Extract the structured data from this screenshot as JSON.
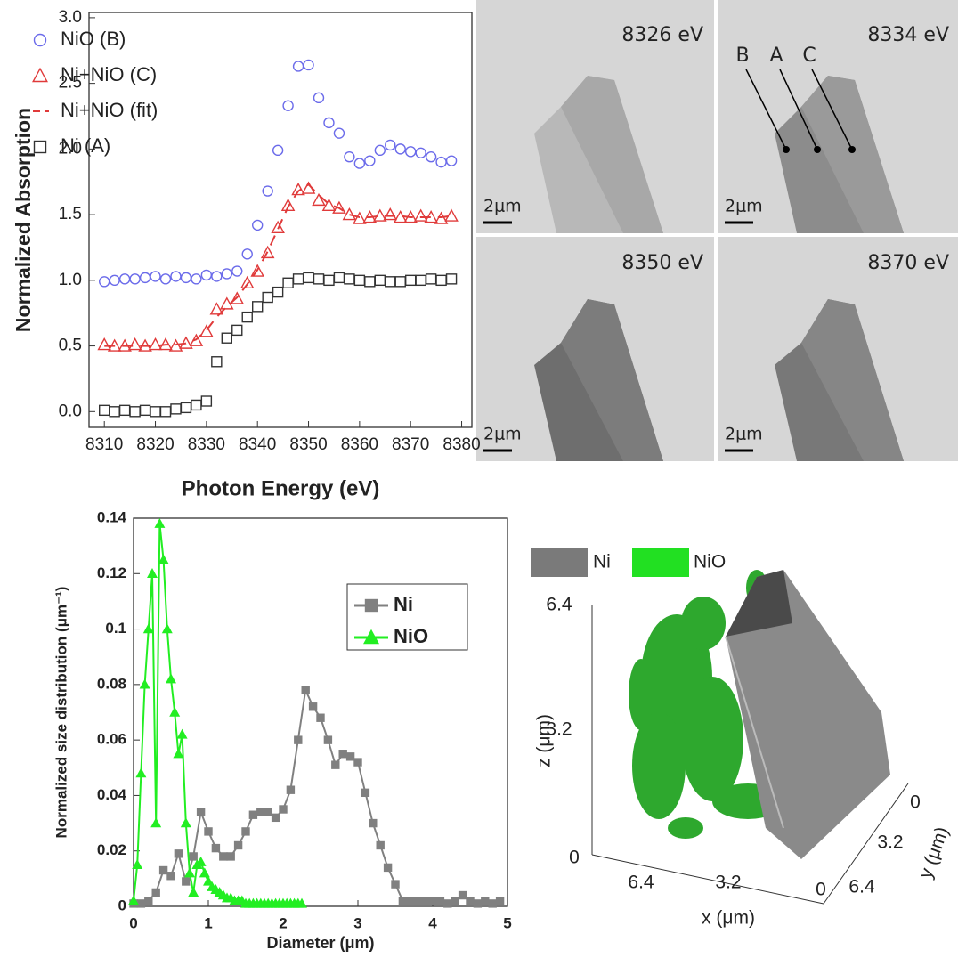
{
  "chart_data": [
    {
      "type": "scatter",
      "x_label": "Photon Energy (eV)",
      "y_label": "Normalized Absorption",
      "x": [
        8310,
        8312,
        8314,
        8316,
        8318,
        8320,
        8322,
        8324,
        8326,
        8328,
        8330,
        8332,
        8334,
        8336,
        8338,
        8340,
        8342,
        8344,
        8346,
        8348,
        8350,
        8352,
        8354,
        8356,
        8358,
        8360,
        8362,
        8364,
        8366,
        8368,
        8370,
        8372,
        8374,
        8376,
        8378
      ],
      "series": [
        {
          "name": "NiO (B)",
          "color": "#6b6bea",
          "marker": "circle",
          "values": [
            0.99,
            1.0,
            1.01,
            1.01,
            1.02,
            1.03,
            1.01,
            1.03,
            1.02,
            1.01,
            1.04,
            1.03,
            1.05,
            1.07,
            1.2,
            1.42,
            1.68,
            1.99,
            2.33,
            2.63,
            2.64,
            2.39,
            2.2,
            2.12,
            1.94,
            1.89,
            1.91,
            1.99,
            2.03,
            2.0,
            1.98,
            1.97,
            1.94,
            1.9,
            1.91
          ]
        },
        {
          "name": "Ni+NiO (C)",
          "color": "#e03a3a",
          "marker": "triangle",
          "values": [
            0.51,
            0.5,
            0.5,
            0.51,
            0.5,
            0.51,
            0.51,
            0.5,
            0.52,
            0.54,
            0.61,
            0.78,
            0.82,
            0.86,
            0.98,
            1.07,
            1.21,
            1.4,
            1.57,
            1.69,
            1.7,
            1.61,
            1.57,
            1.55,
            1.5,
            1.47,
            1.48,
            1.49,
            1.5,
            1.48,
            1.48,
            1.49,
            1.48,
            1.47,
            1.49
          ]
        },
        {
          "name": "Ni+NiO (fit)",
          "color": "#e03a3a",
          "marker": "dash",
          "values": [
            0.5,
            0.5,
            0.5,
            0.5,
            0.5,
            0.5,
            0.51,
            0.51,
            0.52,
            0.55,
            0.62,
            0.72,
            0.8,
            0.87,
            0.97,
            1.08,
            1.22,
            1.39,
            1.56,
            1.68,
            1.73,
            1.65,
            1.58,
            1.55,
            1.5,
            1.48,
            1.48,
            1.49,
            1.49,
            1.49,
            1.48,
            1.48,
            1.48,
            1.48,
            1.49
          ]
        },
        {
          "name": "Ni (A)",
          "color": "#333333",
          "marker": "square",
          "values": [
            0.01,
            0.0,
            0.01,
            0.0,
            0.01,
            0.0,
            0.0,
            0.02,
            0.03,
            0.05,
            0.08,
            0.38,
            0.56,
            0.62,
            0.72,
            0.8,
            0.87,
            0.91,
            0.98,
            1.01,
            1.02,
            1.01,
            1.0,
            1.02,
            1.01,
            1.0,
            0.99,
            1.0,
            0.99,
            0.99,
            1.0,
            1.0,
            1.01,
            1.0,
            1.01
          ]
        }
      ],
      "xlim": [
        8307,
        8382
      ],
      "ylim": [
        -0.12,
        3.04
      ],
      "xticks": [
        8310,
        8320,
        8330,
        8340,
        8350,
        8360,
        8370,
        8380
      ],
      "yticks": [
        {
          "value": 0,
          "label": "0.0"
        },
        0.5,
        {
          "value": 1,
          "label": "1.0"
        },
        1.5,
        {
          "value": 2,
          "label": "2.0"
        },
        2.5,
        {
          "value": 3,
          "label": "3.0"
        }
      ],
      "legend": "upper left"
    },
    {
      "type": "line",
      "x_label": "Diameter (μm)",
      "y_label": "Normalized size distribution (μm⁻¹)",
      "series": [
        {
          "name": "Ni",
          "color": "#808080",
          "marker": "square",
          "x": [
            0,
            0.1,
            0.2,
            0.3,
            0.4,
            0.5,
            0.6,
            0.7,
            0.8,
            0.9,
            1.0,
            1.1,
            1.2,
            1.3,
            1.4,
            1.5,
            1.6,
            1.7,
            1.8,
            1.9,
            2.0,
            2.1,
            2.2,
            2.3,
            2.4,
            2.5,
            2.6,
            2.7,
            2.8,
            2.9,
            3.0,
            3.1,
            3.2,
            3.3,
            3.4,
            3.5,
            3.6,
            3.7,
            3.8,
            3.9,
            4.0,
            4.1,
            4.2,
            4.3,
            4.4,
            4.5,
            4.6,
            4.7,
            4.8,
            4.9
          ],
          "values": [
            0.001,
            0.001,
            0.002,
            0.005,
            0.013,
            0.011,
            0.019,
            0.009,
            0.018,
            0.034,
            0.027,
            0.021,
            0.018,
            0.018,
            0.022,
            0.027,
            0.033,
            0.034,
            0.034,
            0.032,
            0.035,
            0.042,
            0.06,
            0.078,
            0.072,
            0.068,
            0.06,
            0.051,
            0.055,
            0.054,
            0.052,
            0.041,
            0.03,
            0.022,
            0.014,
            0.008,
            0.002,
            0.002,
            0.002,
            0.002,
            0.002,
            0.002,
            0.001,
            0.002,
            0.004,
            0.002,
            0.001,
            0.002,
            0.001,
            0.002
          ]
        },
        {
          "name": "NiO",
          "color": "#22ee22",
          "marker": "triangle",
          "x": [
            0,
            0.05,
            0.1,
            0.15,
            0.2,
            0.25,
            0.3,
            0.35,
            0.4,
            0.45,
            0.5,
            0.55,
            0.6,
            0.65,
            0.7,
            0.75,
            0.8,
            0.85,
            0.9,
            0.95,
            1.0,
            1.05,
            1.1,
            1.15,
            1.2,
            1.25,
            1.3,
            1.35,
            1.4,
            1.45,
            1.5,
            1.55,
            1.6,
            1.65,
            1.7,
            1.75,
            1.8,
            1.85,
            1.9,
            1.95,
            2.0,
            2.05,
            2.1,
            2.15,
            2.2,
            2.25
          ],
          "values": [
            0.002,
            0.015,
            0.048,
            0.08,
            0.1,
            0.12,
            0.03,
            0.138,
            0.125,
            0.1,
            0.082,
            0.07,
            0.055,
            0.062,
            0.03,
            0.012,
            0.005,
            0.015,
            0.016,
            0.012,
            0.009,
            0.007,
            0.006,
            0.005,
            0.004,
            0.003,
            0.003,
            0.002,
            0.002,
            0.002,
            0.001,
            0.001,
            0.001,
            0.001,
            0.001,
            0.001,
            0.001,
            0.001,
            0.001,
            0.001,
            0.001,
            0.001,
            0.001,
            0.001,
            0.001,
            0.001
          ]
        }
      ],
      "xlim": [
        0,
        5
      ],
      "ylim": [
        0,
        0.14
      ],
      "xticks": [
        0,
        1,
        2,
        3,
        4,
        5
      ],
      "yticks": [
        0,
        0.02,
        0.04,
        0.06,
        0.08,
        0.1,
        0.12,
        0.14
      ],
      "legend": "center right"
    }
  ],
  "images": [
    {
      "label": "8326 eV",
      "scale_bar": "2μm"
    },
    {
      "label": "8334 eV",
      "scale_bar": "2μm"
    },
    {
      "label": "8350 eV",
      "scale_bar": "2μm"
    },
    {
      "label": "8370 eV",
      "scale_bar": "2μm"
    }
  ],
  "point_labels": [
    "B",
    "A",
    "C"
  ],
  "render3d": {
    "legend": [
      "Ni",
      "NiO"
    ],
    "z_label": "z (μm)",
    "x_label": "x (μm)",
    "y_label": "y (μm)",
    "z_ticks": [
      "6.4",
      "3.2",
      "0"
    ],
    "x_ticks": [
      "6.4",
      "3.2",
      "0"
    ],
    "y_ticks": [
      "0",
      "3.2",
      "6.4"
    ]
  }
}
